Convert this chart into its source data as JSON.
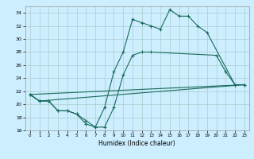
{
  "title": "",
  "xlabel": "Humidex (Indice chaleur)",
  "background_color": "#cceeff",
  "grid_color": "#aacccc",
  "line_color": "#1a6b5a",
  "xlim": [
    -0.5,
    23.5
  ],
  "ylim": [
    16,
    35
  ],
  "xticks": [
    0,
    1,
    2,
    3,
    4,
    5,
    6,
    7,
    8,
    9,
    10,
    11,
    12,
    13,
    14,
    15,
    16,
    17,
    18,
    19,
    20,
    21,
    22,
    23
  ],
  "yticks": [
    16,
    18,
    20,
    22,
    24,
    26,
    28,
    30,
    32,
    34
  ],
  "series1_x": [
    0,
    1,
    2,
    3,
    4,
    5,
    6,
    7,
    8,
    9,
    10,
    11,
    12,
    13,
    14,
    15,
    16,
    17,
    18,
    19,
    22,
    23
  ],
  "series1_y": [
    21.5,
    20.5,
    20.5,
    19.0,
    19.0,
    18.5,
    17.0,
    16.5,
    19.5,
    25.0,
    28.0,
    33.0,
    32.5,
    32.0,
    31.5,
    34.5,
    33.5,
    33.5,
    32.0,
    31.0,
    23.0,
    23.0
  ],
  "series2_x": [
    0,
    1,
    2,
    3,
    4,
    5,
    6,
    7,
    8,
    9,
    10,
    11,
    12,
    13,
    20,
    21,
    22,
    23
  ],
  "series2_y": [
    21.5,
    20.5,
    20.5,
    19.0,
    19.0,
    18.5,
    17.5,
    16.5,
    16.5,
    19.5,
    24.5,
    27.5,
    28.0,
    28.0,
    27.5,
    25.0,
    23.0,
    23.0
  ],
  "series3_x": [
    0,
    1,
    23
  ],
  "series3_y": [
    21.5,
    20.5,
    23.0
  ],
  "series4_x": [
    0,
    23
  ],
  "series4_y": [
    21.5,
    23.0
  ]
}
